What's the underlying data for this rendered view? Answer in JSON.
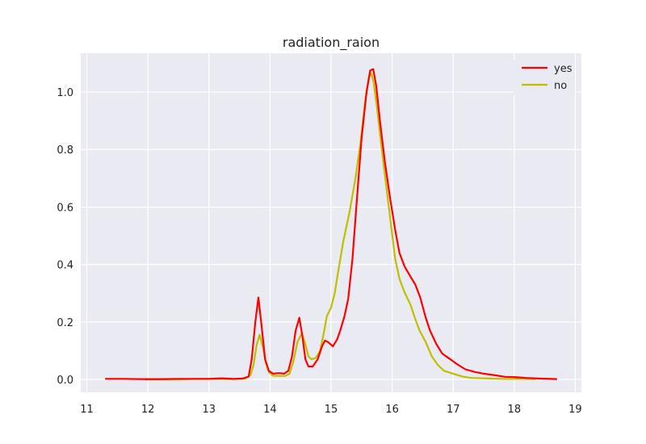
{
  "chart_data": {
    "type": "line",
    "title": "radiation_raion",
    "xlabel": "",
    "ylabel": "",
    "xlim": [
      10.9,
      19.1
    ],
    "ylim": [
      -0.045,
      1.135
    ],
    "xticks": [
      11,
      12,
      13,
      14,
      15,
      16,
      17,
      18,
      19
    ],
    "yticks": [
      0.0,
      0.2,
      0.4,
      0.6,
      0.8,
      1.0
    ],
    "ytick_labels": [
      "0.0",
      "0.2",
      "0.4",
      "0.6",
      "0.8",
      "1.0"
    ],
    "grid": true,
    "legend_position": "top-right",
    "series": [
      {
        "name": "yes",
        "color": "#ff0000",
        "points": [
          [
            11.3,
            0.002
          ],
          [
            11.6,
            0.002
          ],
          [
            11.9,
            0.001
          ],
          [
            12.2,
            0.001
          ],
          [
            12.5,
            0.002
          ],
          [
            12.8,
            0.002
          ],
          [
            13.0,
            0.002
          ],
          [
            13.2,
            0.004
          ],
          [
            13.4,
            0.002
          ],
          [
            13.55,
            0.003
          ],
          [
            13.65,
            0.01
          ],
          [
            13.7,
            0.07
          ],
          [
            13.76,
            0.2
          ],
          [
            13.81,
            0.285
          ],
          [
            13.86,
            0.19
          ],
          [
            13.92,
            0.07
          ],
          [
            13.98,
            0.03
          ],
          [
            14.05,
            0.02
          ],
          [
            14.15,
            0.022
          ],
          [
            14.23,
            0.02
          ],
          [
            14.3,
            0.03
          ],
          [
            14.36,
            0.08
          ],
          [
            14.42,
            0.17
          ],
          [
            14.48,
            0.215
          ],
          [
            14.53,
            0.15
          ],
          [
            14.58,
            0.07
          ],
          [
            14.63,
            0.045
          ],
          [
            14.7,
            0.045
          ],
          [
            14.78,
            0.07
          ],
          [
            14.85,
            0.115
          ],
          [
            14.9,
            0.135
          ],
          [
            14.95,
            0.13
          ],
          [
            15.03,
            0.115
          ],
          [
            15.1,
            0.14
          ],
          [
            15.15,
            0.17
          ],
          [
            15.22,
            0.22
          ],
          [
            15.28,
            0.28
          ],
          [
            15.35,
            0.42
          ],
          [
            15.42,
            0.62
          ],
          [
            15.5,
            0.84
          ],
          [
            15.58,
            1.0
          ],
          [
            15.64,
            1.075
          ],
          [
            15.69,
            1.08
          ],
          [
            15.74,
            1.02
          ],
          [
            15.8,
            0.9
          ],
          [
            15.88,
            0.76
          ],
          [
            15.96,
            0.64
          ],
          [
            16.05,
            0.52
          ],
          [
            16.12,
            0.44
          ],
          [
            16.2,
            0.395
          ],
          [
            16.28,
            0.365
          ],
          [
            16.38,
            0.33
          ],
          [
            16.46,
            0.285
          ],
          [
            16.55,
            0.215
          ],
          [
            16.62,
            0.17
          ],
          [
            16.72,
            0.125
          ],
          [
            16.82,
            0.09
          ],
          [
            16.92,
            0.075
          ],
          [
            17.05,
            0.055
          ],
          [
            17.2,
            0.035
          ],
          [
            17.35,
            0.026
          ],
          [
            17.5,
            0.02
          ],
          [
            17.7,
            0.014
          ],
          [
            17.85,
            0.009
          ],
          [
            18.0,
            0.008
          ],
          [
            18.2,
            0.005
          ],
          [
            18.4,
            0.003
          ],
          [
            18.7,
            0.001
          ]
        ]
      },
      {
        "name": "no",
        "color": "#bfbf00",
        "points": [
          [
            11.95,
            0.0
          ],
          [
            12.2,
            0.0
          ],
          [
            12.5,
            0.0
          ],
          [
            12.8,
            0.002
          ],
          [
            13.0,
            0.002
          ],
          [
            13.2,
            0.002
          ],
          [
            13.4,
            0.001
          ],
          [
            13.6,
            0.003
          ],
          [
            13.68,
            0.015
          ],
          [
            13.73,
            0.05
          ],
          [
            13.78,
            0.12
          ],
          [
            13.83,
            0.155
          ],
          [
            13.88,
            0.115
          ],
          [
            13.93,
            0.06
          ],
          [
            13.98,
            0.025
          ],
          [
            14.05,
            0.013
          ],
          [
            14.15,
            0.012
          ],
          [
            14.25,
            0.012
          ],
          [
            14.32,
            0.02
          ],
          [
            14.38,
            0.06
          ],
          [
            14.45,
            0.13
          ],
          [
            14.52,
            0.16
          ],
          [
            14.57,
            0.13
          ],
          [
            14.63,
            0.08
          ],
          [
            14.68,
            0.07
          ],
          [
            14.75,
            0.075
          ],
          [
            14.82,
            0.1
          ],
          [
            14.88,
            0.16
          ],
          [
            14.93,
            0.22
          ],
          [
            15.0,
            0.25
          ],
          [
            15.06,
            0.3
          ],
          [
            15.12,
            0.38
          ],
          [
            15.2,
            0.48
          ],
          [
            15.3,
            0.58
          ],
          [
            15.4,
            0.7
          ],
          [
            15.48,
            0.82
          ],
          [
            15.56,
            0.97
          ],
          [
            15.62,
            1.05
          ],
          [
            15.66,
            1.065
          ],
          [
            15.7,
            1.03
          ],
          [
            15.75,
            0.95
          ],
          [
            15.82,
            0.82
          ],
          [
            15.9,
            0.68
          ],
          [
            15.98,
            0.54
          ],
          [
            16.05,
            0.42
          ],
          [
            16.12,
            0.35
          ],
          [
            16.2,
            0.305
          ],
          [
            16.3,
            0.26
          ],
          [
            16.38,
            0.21
          ],
          [
            16.45,
            0.17
          ],
          [
            16.55,
            0.13
          ],
          [
            16.65,
            0.08
          ],
          [
            16.75,
            0.05
          ],
          [
            16.85,
            0.03
          ],
          [
            17.0,
            0.02
          ],
          [
            17.15,
            0.01
          ],
          [
            17.3,
            0.005
          ],
          [
            17.5,
            0.004
          ],
          [
            17.8,
            0.002
          ],
          [
            18.1,
            0.002
          ],
          [
            18.35,
            0.001
          ]
        ]
      }
    ]
  }
}
